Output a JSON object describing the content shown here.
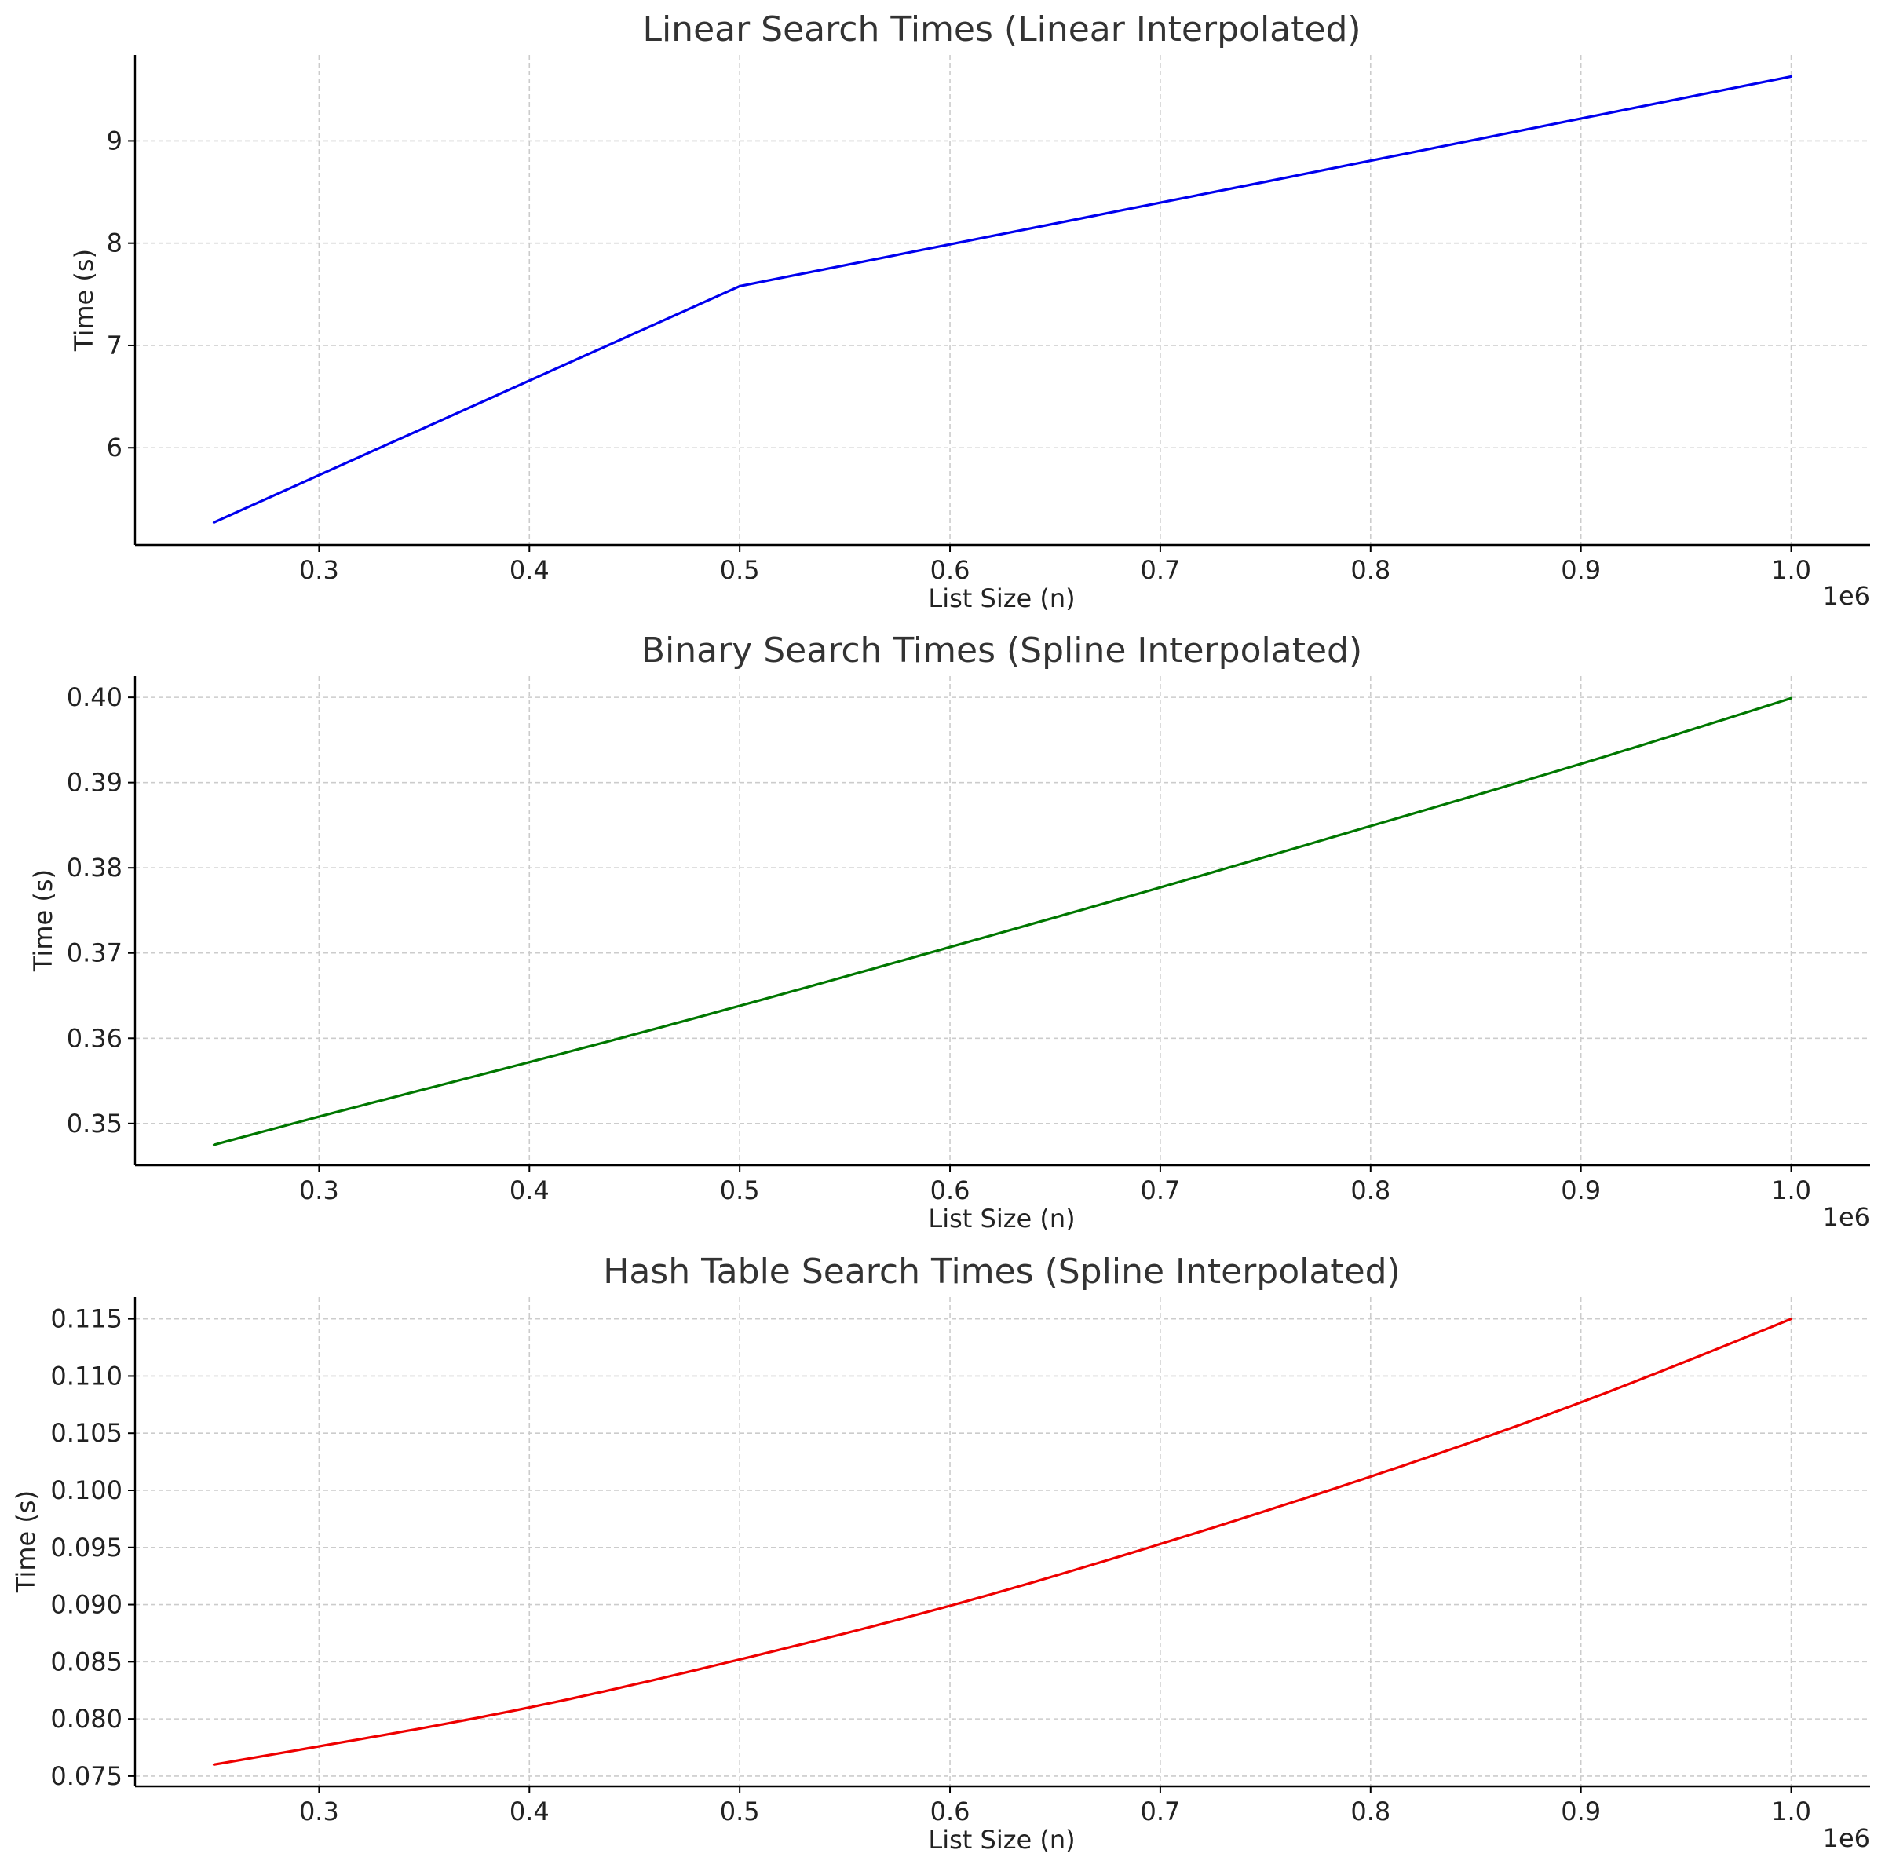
{
  "chart_data": [
    {
      "type": "line",
      "title": "Linear Search Times (Linear Interpolated)",
      "xlabel": "List Size (n)",
      "ylabel": "Time (s)",
      "x_offset_label": "1e6",
      "x_ticks": [
        0.3,
        0.4,
        0.5,
        0.6,
        0.7,
        0.8,
        0.9,
        1.0
      ],
      "x_tick_labels": [
        "0.3",
        "0.4",
        "0.5",
        "0.6",
        "0.7",
        "0.8",
        "0.9",
        "1.0"
      ],
      "y_ticks": [
        6,
        7,
        8,
        9
      ],
      "y_tick_labels": [
        "6",
        "7",
        "8",
        "9"
      ],
      "xlim": [
        0.2125,
        1.0375
      ],
      "ylim": [
        5.05,
        9.84
      ],
      "grid": true,
      "series": [
        {
          "color": "#0000ee",
          "x": [
            0.25,
            0.5,
            0.75,
            1.0
          ],
          "y": [
            5.27,
            7.58,
            8.6,
            9.63
          ]
        }
      ]
    },
    {
      "type": "line",
      "title": "Binary Search Times (Spline Interpolated)",
      "xlabel": "List Size (n)",
      "ylabel": "Time (s)",
      "x_offset_label": "1e6",
      "x_ticks": [
        0.3,
        0.4,
        0.5,
        0.6,
        0.7,
        0.8,
        0.9,
        1.0
      ],
      "x_tick_labels": [
        "0.3",
        "0.4",
        "0.5",
        "0.6",
        "0.7",
        "0.8",
        "0.9",
        "1.0"
      ],
      "y_ticks": [
        0.35,
        0.36,
        0.37,
        0.38,
        0.39,
        0.4
      ],
      "y_tick_labels": [
        "0.35",
        "0.36",
        "0.37",
        "0.38",
        "0.39",
        "0.40"
      ],
      "xlim": [
        0.2125,
        1.0375
      ],
      "ylim": [
        0.3451,
        0.4025
      ],
      "grid": true,
      "series": [
        {
          "color": "#007700",
          "x": [
            0.25,
            0.3,
            0.4,
            0.5,
            0.6,
            0.7,
            0.8,
            0.9,
            1.0
          ],
          "y": [
            0.3475,
            0.3508,
            0.3572,
            0.3638,
            0.3707,
            0.3777,
            0.3849,
            0.3922,
            0.3999
          ]
        }
      ]
    },
    {
      "type": "line",
      "title": "Hash Table Search Times (Spline Interpolated)",
      "xlabel": "List Size (n)",
      "ylabel": "Time (s)",
      "x_offset_label": "1e6",
      "x_ticks": [
        0.3,
        0.4,
        0.5,
        0.6,
        0.7,
        0.8,
        0.9,
        1.0
      ],
      "x_tick_labels": [
        "0.3",
        "0.4",
        "0.5",
        "0.6",
        "0.7",
        "0.8",
        "0.9",
        "1.0"
      ],
      "y_ticks": [
        0.075,
        0.08,
        0.085,
        0.09,
        0.095,
        0.1,
        0.105,
        0.11,
        0.115
      ],
      "y_tick_labels": [
        "0.075",
        "0.080",
        "0.085",
        "0.090",
        "0.095",
        "0.100",
        "0.105",
        "0.110",
        "0.115"
      ],
      "xlim": [
        0.2125,
        1.0375
      ],
      "ylim": [
        0.0741,
        0.1169
      ],
      "grid": true,
      "series": [
        {
          "color": "#ee0000",
          "x": [
            0.25,
            0.3,
            0.4,
            0.5,
            0.6,
            0.7,
            0.8,
            0.9,
            1.0
          ],
          "y": [
            0.076,
            0.0776,
            0.081,
            0.0852,
            0.0899,
            0.0953,
            0.1012,
            0.1077,
            0.115
          ]
        }
      ]
    }
  ]
}
